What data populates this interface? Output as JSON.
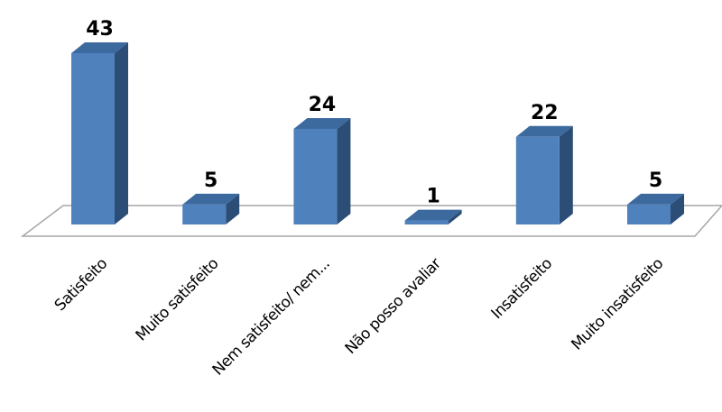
{
  "chart_data": {
    "type": "bar",
    "style": "3d-column",
    "categories": [
      "Satisfeito",
      "Muito satisfeito",
      "Nem satisfeito/ nem...",
      "Não posso avaliar",
      "Insatisfeito",
      "Muito insatisfeito"
    ],
    "values": [
      43,
      5,
      24,
      1,
      22,
      5
    ],
    "data_labels": [
      "43",
      "5",
      "24",
      "1",
      "22",
      "5"
    ],
    "title": "",
    "xlabel": "",
    "ylabel": "",
    "ylim": [
      0,
      43
    ],
    "grid": false,
    "legend": "none",
    "colors": {
      "front": "#4f81bd",
      "side": "#2c4d75",
      "top": "#3d6a9e",
      "floor_edge": "#a6a6a6"
    }
  }
}
